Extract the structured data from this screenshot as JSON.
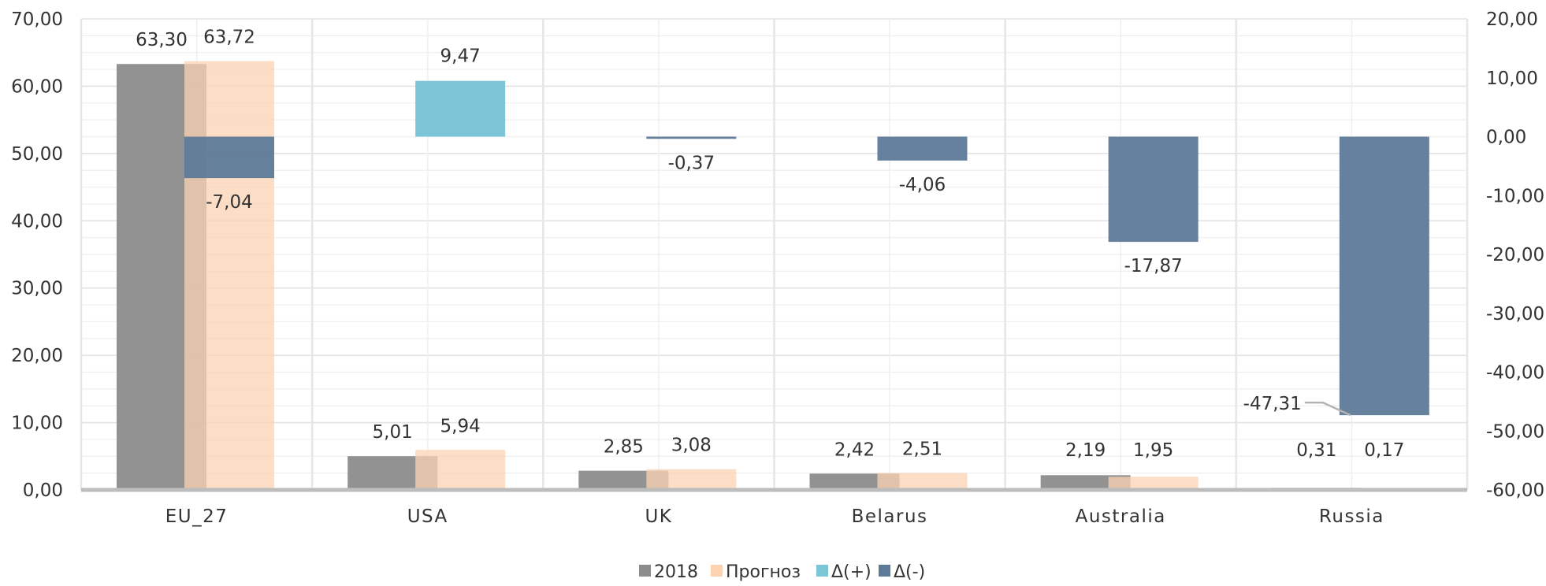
{
  "chart_data": {
    "type": "bar",
    "categories": [
      "EU_27",
      "USA",
      "UK",
      "Belarus",
      "Australia",
      "Russia"
    ],
    "series": [
      {
        "name": "2018",
        "axis": "left",
        "color": "#8c8c8c",
        "opacity": 0.95,
        "values": [
          63.3,
          5.01,
          2.85,
          2.42,
          2.19,
          0.31
        ],
        "labels": [
          "63,30",
          "5,01",
          "2,85",
          "2,42",
          "2,19",
          "0,31"
        ]
      },
      {
        "name": "Прогноз",
        "axis": "left",
        "color": "#fbd2b2",
        "opacity": 0.75,
        "values": [
          63.72,
          5.94,
          3.08,
          2.51,
          1.95,
          0.17
        ],
        "labels": [
          "63,72",
          "5,94",
          "3,08",
          "2,51",
          "1,95",
          "0,17"
        ]
      },
      {
        "name": "Δ(+)",
        "axis": "right",
        "color": "#7bc5d6",
        "opacity": 1,
        "values": [
          null,
          9.47,
          null,
          null,
          null,
          null
        ],
        "labels": [
          null,
          "9,47",
          null,
          null,
          null,
          null
        ]
      },
      {
        "name": "Δ(-)",
        "axis": "right",
        "color": "#5d7a99",
        "opacity": 0.95,
        "values": [
          -7.04,
          null,
          -0.37,
          -4.06,
          -17.87,
          -47.31
        ],
        "labels": [
          "-7,04",
          null,
          "-0,37",
          "-4,06",
          "-17,87",
          "-47,31"
        ]
      }
    ],
    "y_left": {
      "ylim": [
        0,
        70
      ],
      "ticks": [
        0,
        10,
        20,
        30,
        40,
        50,
        60,
        70
      ],
      "tick_labels": [
        "0,00",
        "10,00",
        "20,00",
        "30,00",
        "40,00",
        "50,00",
        "60,00",
        "70,00"
      ]
    },
    "y_right": {
      "ylim": [
        -60,
        20
      ],
      "ticks": [
        -60,
        -50,
        -40,
        -30,
        -20,
        -10,
        0,
        10,
        20
      ],
      "tick_labels": [
        "-60,00",
        "-50,00",
        "-40,00",
        "-30,00",
        "-20,00",
        "-10,00",
        "0,00",
        "10,00",
        "20,00"
      ]
    },
    "grid": true,
    "legend": {
      "position": "bottom",
      "items": [
        {
          "label": "2018",
          "color": "#8c8c8c"
        },
        {
          "label": "Прогноз",
          "color": "#fbd2b2"
        },
        {
          "label": "Δ(+)",
          "color": "#7bc5d6"
        },
        {
          "label": "Δ(-)",
          "color": "#5d7a99"
        }
      ]
    }
  }
}
